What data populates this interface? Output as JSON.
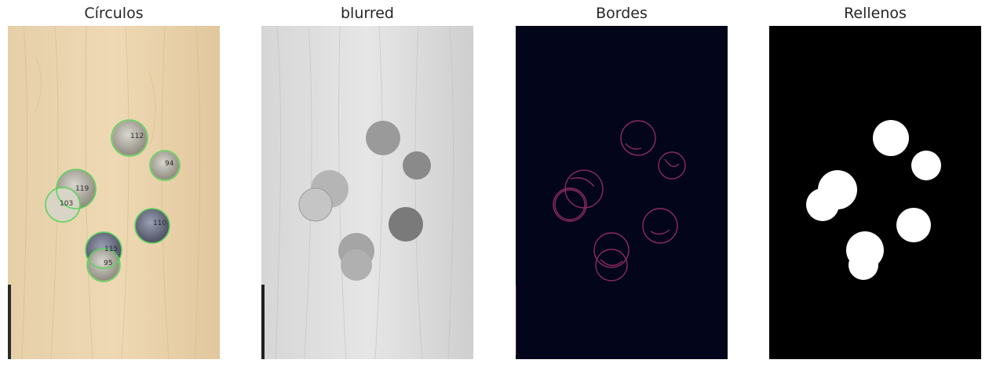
{
  "figure": {
    "panels": [
      {
        "title": "Círculos",
        "kind": "original-with-detected-circles"
      },
      {
        "title": "blurred",
        "kind": "grayscale-blurred"
      },
      {
        "title": "Bordes",
        "kind": "edge-map"
      },
      {
        "title": "Rellenos",
        "kind": "filled-mask"
      }
    ],
    "circle_labels": [
      "112",
      "94",
      "119",
      "103",
      "110",
      "115",
      "95"
    ],
    "colors": {
      "circle_outline": "#5fd35f",
      "edge_background": "#03051a",
      "edge_color": "#8a2a5e",
      "mask_background": "#000000",
      "mask_fill": "#ffffff"
    }
  }
}
